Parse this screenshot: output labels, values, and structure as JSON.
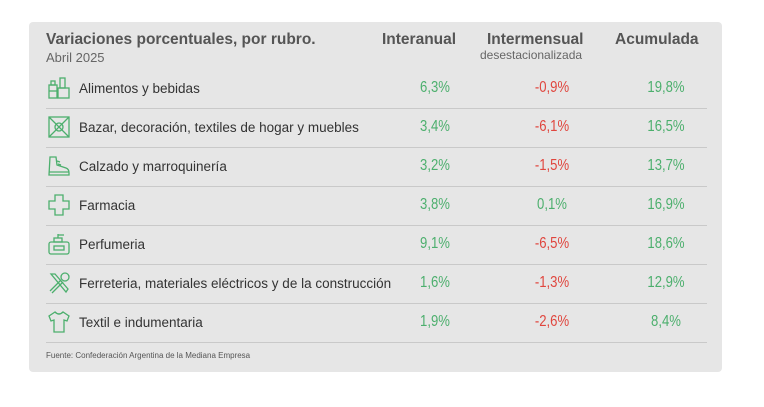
{
  "header": {
    "title": "Variaciones porcentuales, por rubro.",
    "subtitle": "Abril 2025",
    "col_interanual": "Interanual",
    "col_intermensual": "Intermensual",
    "col_intermensual_sub": "desestacionalizada",
    "col_acumulada": "Acumulada"
  },
  "rows": [
    {
      "icon": "groceries-icon",
      "label": "Alimentos y bebidas",
      "interanual": "6,3%",
      "intermensual": "-0,9%",
      "acumulada": "19,8%"
    },
    {
      "icon": "decor-icon",
      "label": "Bazar, decoración, textiles de hogar y muebles",
      "interanual": "3,4%",
      "intermensual": "-6,1%",
      "acumulada": "16,5%"
    },
    {
      "icon": "shoe-icon",
      "label": "Calzado y marroquinería",
      "interanual": "3,2%",
      "intermensual": "-1,5%",
      "acumulada": "13,7%"
    },
    {
      "icon": "pharmacy-cross-icon",
      "label": "Farmacia",
      "interanual": "3,8%",
      "intermensual": "0,1%",
      "acumulada": "16,9%"
    },
    {
      "icon": "perfume-icon",
      "label": "Perfumeria",
      "interanual": "9,1%",
      "intermensual": "-6,5%",
      "acumulada": "18,6%"
    },
    {
      "icon": "tools-icon",
      "label": "Ferreteria, materiales eléctricos y de la construcción",
      "interanual": "1,6%",
      "intermensual": "-1,3%",
      "acumulada": "12,9%"
    },
    {
      "icon": "shirt-icon",
      "label": "Textil e indumentaria",
      "interanual": "1,9%",
      "intermensual": "-2,6%",
      "acumulada": "8,4%"
    }
  ],
  "source": "Fuente: Confederación Argentina de la Mediana Empresa",
  "colors": {
    "positive": "#4caf6d",
    "negative": "#e0463e",
    "card": "#e6e6e6",
    "icon": "#4caf6d"
  }
}
